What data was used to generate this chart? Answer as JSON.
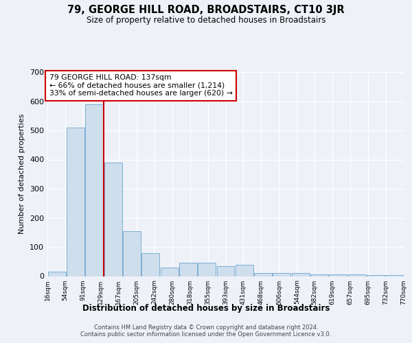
{
  "title": "79, GEORGE HILL ROAD, BROADSTAIRS, CT10 3JR",
  "subtitle": "Size of property relative to detached houses in Broadstairs",
  "xlabel": "Distribution of detached houses by size in Broadstairs",
  "ylabel": "Number of detached properties",
  "bar_values": [
    15,
    510,
    590,
    390,
    155,
    80,
    30,
    45,
    45,
    35,
    40,
    10,
    10,
    10,
    5,
    5,
    5,
    3,
    3
  ],
  "x_labels": [
    "16sqm",
    "54sqm",
    "91sqm",
    "129sqm",
    "167sqm",
    "205sqm",
    "242sqm",
    "280sqm",
    "318sqm",
    "355sqm",
    "393sqm",
    "431sqm",
    "468sqm",
    "506sqm",
    "544sqm",
    "582sqm",
    "619sqm",
    "657sqm",
    "695sqm",
    "732sqm",
    "770sqm"
  ],
  "bar_color": "#cfdeed",
  "bar_edge_color": "#7bafd4",
  "annotation_box_color": "#ffffff",
  "annotation_box_edge_color": "#cc0000",
  "property_line_color": "#cc0000",
  "property_line_x": 2.5,
  "annotation_line1": "79 GEORGE HILL ROAD: 137sqm",
  "annotation_line2": "← 66% of detached houses are smaller (1,214)",
  "annotation_line3": "33% of semi-detached houses are larger (620) →",
  "ylim": [
    0,
    700
  ],
  "yticks": [
    0,
    100,
    200,
    300,
    400,
    500,
    600,
    700
  ],
  "footer_line1": "Contains HM Land Registry data © Crown copyright and database right 2024.",
  "footer_line2": "Contains public sector information licensed under the Open Government Licence v3.0.",
  "background_color": "#eef2f8",
  "num_bars": 19,
  "num_xlabels": 21
}
